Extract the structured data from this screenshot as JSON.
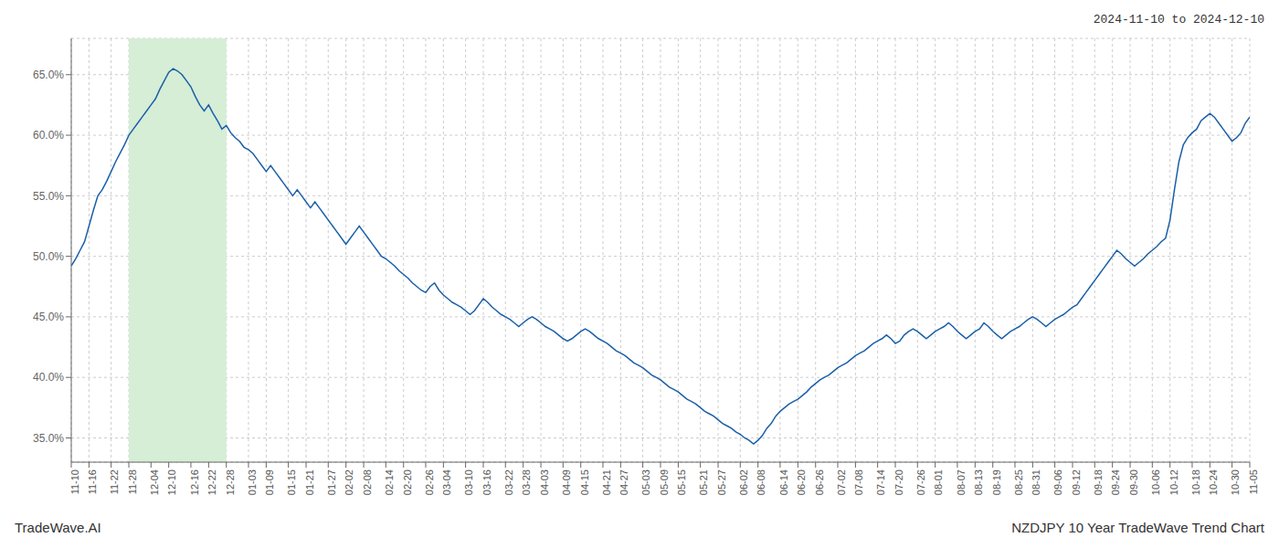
{
  "chart_data": {
    "type": "line",
    "title": "NZDJPY 10 Year TradeWave Trend Chart",
    "subtitle": "2024-11-10 to 2024-12-10",
    "annotations": [
      "TradeWave.AI"
    ],
    "color": "#1a5fa8",
    "grid": true,
    "ylim": [
      33.0,
      68.0
    ],
    "yticks": [
      {
        "value": 35.0,
        "label": "35.0%"
      },
      {
        "value": 40.0,
        "label": "40.0%"
      },
      {
        "value": 45.0,
        "label": "45.0%"
      },
      {
        "value": 50.0,
        "label": "50.0%"
      },
      {
        "value": 55.0,
        "label": "55.0%"
      },
      {
        "value": 60.0,
        "label": "60.0%"
      },
      {
        "value": 65.0,
        "label": "65.0%"
      }
    ],
    "highlight": {
      "x": [
        "11-28",
        "12-28"
      ],
      "color": "#d6edd6"
    },
    "categories": [
      "11-10",
      null,
      null,
      null,
      "11-16",
      null,
      null,
      null,
      null,
      "11-22",
      null,
      null,
      null,
      "11-28",
      null,
      null,
      null,
      null,
      "12-04",
      null,
      null,
      null,
      "12-10",
      null,
      null,
      null,
      null,
      "12-16",
      null,
      null,
      null,
      "12-22",
      null,
      null,
      null,
      "12-28",
      null,
      null,
      null,
      null,
      "01-03",
      null,
      null,
      null,
      "01-09",
      null,
      null,
      null,
      null,
      "01-15",
      null,
      null,
      null,
      "01-21",
      null,
      null,
      null,
      null,
      "01-27",
      null,
      null,
      null,
      "02-02",
      null,
      null,
      null,
      "02-08",
      null,
      null,
      null,
      null,
      "02-14",
      null,
      null,
      null,
      "02-20",
      null,
      null,
      null,
      null,
      "02-26",
      null,
      null,
      null,
      "03-04",
      null,
      null,
      null,
      null,
      "03-10",
      null,
      null,
      null,
      "03-16",
      null,
      null,
      null,
      null,
      "03-22",
      null,
      null,
      null,
      "03-28",
      null,
      null,
      null,
      "04-03",
      null,
      null,
      null,
      null,
      "04-09",
      null,
      null,
      null,
      "04-15",
      null,
      null,
      null,
      null,
      "04-21",
      null,
      null,
      null,
      "04-27",
      null,
      null,
      null,
      null,
      "05-03",
      null,
      null,
      null,
      "05-09",
      null,
      null,
      null,
      "05-15",
      null,
      null,
      null,
      null,
      "05-21",
      null,
      null,
      null,
      "05-27",
      null,
      null,
      null,
      null,
      "06-02",
      null,
      null,
      null,
      "06-08",
      null,
      null,
      null,
      null,
      "06-14",
      null,
      null,
      null,
      "06-20",
      null,
      null,
      null,
      "06-26",
      null,
      null,
      null,
      null,
      "07-02",
      null,
      null,
      null,
      "07-08",
      null,
      null,
      null,
      null,
      "07-14",
      null,
      null,
      null,
      "07-20",
      null,
      null,
      null,
      null,
      "07-26",
      null,
      null,
      null,
      "08-01",
      null,
      null,
      null,
      null,
      "08-07",
      null,
      null,
      null,
      "08-13",
      null,
      null,
      null,
      "08-19",
      null,
      null,
      null,
      null,
      "08-25",
      null,
      null,
      null,
      "08-31",
      null,
      null,
      null,
      null,
      "09-06",
      null,
      null,
      null,
      "09-12",
      null,
      null,
      null,
      null,
      "09-18",
      null,
      null,
      null,
      "09-24",
      null,
      null,
      null,
      "09-30",
      null,
      null,
      null,
      null,
      "10-06",
      null,
      null,
      null,
      "10-12",
      null,
      null,
      null,
      null,
      "10-18",
      null,
      null,
      null,
      "10-24",
      null,
      null,
      null,
      null,
      "10-30",
      null,
      null,
      null,
      "11-05"
    ],
    "values": [
      49.2,
      49.8,
      50.5,
      51.2,
      52.5,
      53.8,
      55.0,
      55.5,
      56.2,
      57.0,
      57.8,
      58.5,
      59.2,
      60.0,
      60.5,
      61.0,
      61.5,
      62.0,
      62.5,
      63.0,
      63.8,
      64.5,
      65.2,
      65.5,
      65.3,
      65.0,
      64.5,
      64.0,
      63.2,
      62.5,
      62.0,
      62.5,
      61.8,
      61.2,
      60.5,
      60.8,
      60.2,
      59.8,
      59.5,
      59.0,
      58.8,
      58.5,
      58.0,
      57.5,
      57.0,
      57.5,
      57.0,
      56.5,
      56.0,
      55.5,
      55.0,
      55.5,
      55.0,
      54.5,
      54.0,
      54.5,
      54.0,
      53.5,
      53.0,
      52.5,
      52.0,
      51.5,
      51.0,
      51.5,
      52.0,
      52.5,
      52.0,
      51.5,
      51.0,
      50.5,
      50.0,
      49.8,
      49.5,
      49.2,
      48.8,
      48.5,
      48.2,
      47.8,
      47.5,
      47.2,
      47.0,
      47.5,
      47.8,
      47.2,
      46.8,
      46.5,
      46.2,
      46.0,
      45.8,
      45.5,
      45.2,
      45.5,
      46.0,
      46.5,
      46.2,
      45.8,
      45.5,
      45.2,
      45.0,
      44.8,
      44.5,
      44.2,
      44.5,
      44.8,
      45.0,
      44.8,
      44.5,
      44.2,
      44.0,
      43.8,
      43.5,
      43.2,
      43.0,
      43.2,
      43.5,
      43.8,
      44.0,
      43.8,
      43.5,
      43.2,
      43.0,
      42.8,
      42.5,
      42.2,
      42.0,
      41.8,
      41.5,
      41.2,
      41.0,
      40.8,
      40.5,
      40.2,
      40.0,
      39.8,
      39.5,
      39.2,
      39.0,
      38.8,
      38.5,
      38.2,
      38.0,
      37.8,
      37.5,
      37.2,
      37.0,
      36.8,
      36.5,
      36.2,
      36.0,
      35.8,
      35.5,
      35.3,
      35.0,
      34.8,
      34.5,
      34.8,
      35.2,
      35.8,
      36.2,
      36.8,
      37.2,
      37.5,
      37.8,
      38.0,
      38.2,
      38.5,
      38.8,
      39.2,
      39.5,
      39.8,
      40.0,
      40.2,
      40.5,
      40.8,
      41.0,
      41.2,
      41.5,
      41.8,
      42.0,
      42.2,
      42.5,
      42.8,
      43.0,
      43.2,
      43.5,
      43.2,
      42.8,
      43.0,
      43.5,
      43.8,
      44.0,
      43.8,
      43.5,
      43.2,
      43.5,
      43.8,
      44.0,
      44.2,
      44.5,
      44.2,
      43.8,
      43.5,
      43.2,
      43.5,
      43.8,
      44.0,
      44.5,
      44.2,
      43.8,
      43.5,
      43.2,
      43.5,
      43.8,
      44.0,
      44.2,
      44.5,
      44.8,
      45.0,
      44.8,
      44.5,
      44.2,
      44.5,
      44.8,
      45.0,
      45.2,
      45.5,
      45.8,
      46.0,
      46.5,
      47.0,
      47.5,
      48.0,
      48.5,
      49.0,
      49.5,
      50.0,
      50.5,
      50.2,
      49.8,
      49.5,
      49.2,
      49.5,
      49.8,
      50.2,
      50.5,
      50.8,
      51.2,
      51.5,
      53.0,
      55.5,
      57.8,
      59.2,
      59.8,
      60.2,
      60.5,
      61.2,
      61.5,
      61.8,
      61.5,
      61.0,
      60.5,
      60.0,
      59.5,
      59.8,
      60.2,
      61.0,
      61.5
    ]
  }
}
